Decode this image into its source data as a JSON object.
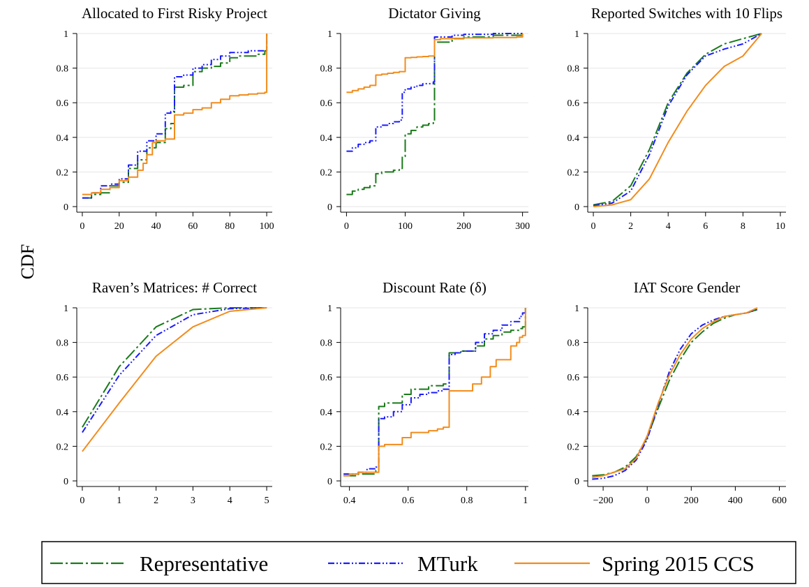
{
  "ylabel": "CDF",
  "colors": {
    "representative": "#1a7a1a",
    "mturk": "#1a1aff",
    "ccs": "#f28c1c",
    "grid": "#e6e6e6"
  },
  "legend": {
    "items": [
      {
        "key": "representative",
        "label": "Representative"
      },
      {
        "key": "mturk",
        "label": "MTurk"
      },
      {
        "key": "ccs",
        "label": "Spring 2015 CCS"
      }
    ]
  },
  "chart_data": [
    {
      "type": "line",
      "title": "Allocated to First Risky Project",
      "xlim": [
        -3,
        103
      ],
      "xticks": [
        0,
        20,
        40,
        60,
        80,
        100
      ],
      "ylim": [
        0,
        1
      ],
      "yticks": [
        0,
        0.2,
        0.4,
        0.6,
        0.8,
        1
      ],
      "step": true,
      "series": [
        {
          "key": "representative",
          "x": [
            0,
            5,
            10,
            15,
            20,
            25,
            30,
            35,
            40,
            45,
            48,
            50,
            55,
            60,
            65,
            70,
            75,
            80,
            85,
            90,
            95,
            99,
            100
          ],
          "y": [
            0.05,
            0.07,
            0.08,
            0.12,
            0.14,
            0.22,
            0.27,
            0.34,
            0.37,
            0.45,
            0.48,
            0.69,
            0.7,
            0.78,
            0.8,
            0.81,
            0.83,
            0.86,
            0.87,
            0.87,
            0.88,
            0.9,
            1.0
          ]
        },
        {
          "key": "mturk",
          "x": [
            0,
            5,
            10,
            15,
            20,
            25,
            30,
            35,
            40,
            45,
            48,
            50,
            55,
            60,
            65,
            70,
            75,
            80,
            85,
            90,
            95,
            99,
            100
          ],
          "y": [
            0.05,
            0.08,
            0.12,
            0.13,
            0.16,
            0.24,
            0.32,
            0.38,
            0.42,
            0.54,
            0.55,
            0.75,
            0.76,
            0.8,
            0.82,
            0.85,
            0.87,
            0.89,
            0.89,
            0.9,
            0.9,
            0.9,
            1.0
          ]
        },
        {
          "key": "ccs",
          "x": [
            0,
            5,
            10,
            15,
            20,
            25,
            30,
            33,
            35,
            38,
            40,
            45,
            50,
            55,
            60,
            65,
            70,
            75,
            80,
            85,
            90,
            95,
            99,
            100
          ],
          "y": [
            0.07,
            0.08,
            0.1,
            0.11,
            0.15,
            0.17,
            0.21,
            0.25,
            0.3,
            0.37,
            0.38,
            0.39,
            0.53,
            0.54,
            0.56,
            0.57,
            0.6,
            0.62,
            0.64,
            0.645,
            0.65,
            0.655,
            0.66,
            1.0
          ]
        }
      ]
    },
    {
      "type": "line",
      "title": "Dictator Giving",
      "xlim": [
        -10,
        310
      ],
      "xticks": [
        0,
        100,
        200,
        300
      ],
      "ylim": [
        0,
        1
      ],
      "yticks": [
        0,
        0.2,
        0.4,
        0.6,
        0.8,
        1
      ],
      "step": true,
      "series": [
        {
          "key": "representative",
          "x": [
            0,
            10,
            20,
            30,
            40,
            50,
            60,
            70,
            80,
            90,
            95,
            100,
            110,
            120,
            130,
            140,
            148,
            150,
            160,
            180,
            200,
            250,
            280,
            300
          ],
          "y": [
            0.07,
            0.09,
            0.1,
            0.11,
            0.12,
            0.19,
            0.2,
            0.2,
            0.21,
            0.22,
            0.29,
            0.42,
            0.44,
            0.46,
            0.47,
            0.48,
            0.49,
            0.95,
            0.95,
            0.97,
            0.98,
            0.99,
            0.99,
            1.0
          ]
        },
        {
          "key": "mturk",
          "x": [
            0,
            10,
            20,
            30,
            40,
            50,
            60,
            70,
            80,
            90,
            95,
            100,
            110,
            120,
            130,
            140,
            148,
            150,
            160,
            180,
            200,
            250,
            280,
            300
          ],
          "y": [
            0.32,
            0.34,
            0.36,
            0.37,
            0.38,
            0.46,
            0.47,
            0.48,
            0.49,
            0.5,
            0.66,
            0.68,
            0.69,
            0.7,
            0.71,
            0.71,
            0.72,
            0.98,
            0.98,
            0.99,
            0.995,
            1.0,
            1.0,
            1.0
          ]
        },
        {
          "key": "ccs",
          "x": [
            0,
            10,
            20,
            30,
            40,
            50,
            60,
            70,
            80,
            90,
            100,
            110,
            120,
            130,
            140,
            150,
            160,
            180,
            200,
            250,
            290,
            300
          ],
          "y": [
            0.66,
            0.67,
            0.68,
            0.69,
            0.7,
            0.76,
            0.765,
            0.77,
            0.775,
            0.78,
            0.86,
            0.862,
            0.865,
            0.867,
            0.87,
            0.965,
            0.97,
            0.972,
            0.975,
            0.977,
            0.98,
            1.0
          ]
        }
      ]
    },
    {
      "type": "line",
      "title": "Reported Switches with 10 Flips",
      "xlim": [
        -0.3,
        10.3
      ],
      "xticks": [
        0,
        2,
        4,
        6,
        8,
        10
      ],
      "ylim": [
        0,
        1
      ],
      "yticks": [
        0,
        0.2,
        0.4,
        0.6,
        0.8,
        1
      ],
      "step": false,
      "series": [
        {
          "key": "representative",
          "x": [
            0,
            1,
            2,
            3,
            4,
            5,
            6,
            7,
            8,
            9
          ],
          "y": [
            0.01,
            0.03,
            0.12,
            0.33,
            0.6,
            0.77,
            0.88,
            0.94,
            0.97,
            1.0
          ]
        },
        {
          "key": "mturk",
          "x": [
            0,
            1,
            2,
            3,
            4,
            5,
            6,
            7,
            8,
            9
          ],
          "y": [
            0.005,
            0.02,
            0.09,
            0.3,
            0.58,
            0.76,
            0.87,
            0.91,
            0.94,
            1.0
          ]
        },
        {
          "key": "ccs",
          "x": [
            0,
            1,
            2,
            3,
            4,
            5,
            6,
            7,
            8,
            9
          ],
          "y": [
            0.0,
            0.01,
            0.04,
            0.16,
            0.37,
            0.55,
            0.7,
            0.81,
            0.87,
            1.0
          ]
        }
      ]
    },
    {
      "type": "line",
      "title": "Raven’s Matrices: # Correct",
      "xlim": [
        -0.15,
        5.15
      ],
      "xticks": [
        0,
        1,
        2,
        3,
        4,
        5
      ],
      "ylim": [
        0,
        1
      ],
      "yticks": [
        0,
        0.2,
        0.4,
        0.6,
        0.8,
        1
      ],
      "step": false,
      "series": [
        {
          "key": "representative",
          "x": [
            0,
            1,
            2,
            3,
            4,
            5
          ],
          "y": [
            0.31,
            0.66,
            0.89,
            0.99,
            1.0,
            1.0
          ]
        },
        {
          "key": "mturk",
          "x": [
            0,
            1,
            2,
            3,
            4,
            5
          ],
          "y": [
            0.28,
            0.61,
            0.84,
            0.96,
            0.995,
            1.0
          ]
        },
        {
          "key": "ccs",
          "x": [
            0,
            1,
            2,
            3,
            4,
            5
          ],
          "y": [
            0.17,
            0.45,
            0.72,
            0.89,
            0.98,
            1.0
          ]
        }
      ]
    },
    {
      "type": "line",
      "title": "Discount Rate (δ)",
      "xlim": [
        0.37,
        1.01
      ],
      "xticks": [
        0.4,
        0.6,
        0.8,
        1
      ],
      "ylim": [
        0,
        1
      ],
      "yticks": [
        0,
        0.2,
        0.4,
        0.6,
        0.8,
        1
      ],
      "step": true,
      "series": [
        {
          "key": "representative",
          "x": [
            0.38,
            0.4,
            0.43,
            0.46,
            0.49,
            0.5,
            0.52,
            0.55,
            0.58,
            0.61,
            0.64,
            0.67,
            0.7,
            0.72,
            0.74,
            0.76,
            0.78,
            0.8,
            0.83,
            0.86,
            0.89,
            0.92,
            0.95,
            0.98,
            0.99,
            1.0
          ],
          "y": [
            0.03,
            0.03,
            0.04,
            0.04,
            0.06,
            0.43,
            0.45,
            0.45,
            0.5,
            0.53,
            0.53,
            0.55,
            0.55,
            0.56,
            0.74,
            0.74,
            0.75,
            0.75,
            0.78,
            0.82,
            0.84,
            0.86,
            0.87,
            0.88,
            0.89,
            1.0
          ]
        },
        {
          "key": "mturk",
          "x": [
            0.38,
            0.4,
            0.43,
            0.46,
            0.49,
            0.5,
            0.52,
            0.55,
            0.58,
            0.61,
            0.64,
            0.67,
            0.7,
            0.72,
            0.74,
            0.76,
            0.78,
            0.8,
            0.83,
            0.86,
            0.89,
            0.92,
            0.95,
            0.98,
            0.99,
            1.0
          ],
          "y": [
            0.04,
            0.04,
            0.05,
            0.07,
            0.08,
            0.36,
            0.37,
            0.4,
            0.44,
            0.48,
            0.5,
            0.51,
            0.52,
            0.53,
            0.73,
            0.74,
            0.75,
            0.75,
            0.8,
            0.85,
            0.87,
            0.9,
            0.92,
            0.95,
            0.97,
            1.0
          ]
        },
        {
          "key": "ccs",
          "x": [
            0.38,
            0.4,
            0.43,
            0.46,
            0.49,
            0.5,
            0.52,
            0.55,
            0.58,
            0.61,
            0.64,
            0.67,
            0.7,
            0.72,
            0.74,
            0.78,
            0.82,
            0.85,
            0.88,
            0.9,
            0.93,
            0.95,
            0.97,
            0.98,
            0.99,
            1.0
          ],
          "y": [
            0.03,
            0.04,
            0.05,
            0.05,
            0.05,
            0.2,
            0.21,
            0.21,
            0.25,
            0.28,
            0.28,
            0.29,
            0.3,
            0.31,
            0.52,
            0.52,
            0.56,
            0.6,
            0.66,
            0.7,
            0.7,
            0.78,
            0.8,
            0.83,
            0.84,
            1.0
          ]
        }
      ]
    },
    {
      "type": "line",
      "title": "IAT Score Gender",
      "xlim": [
        -270,
        630
      ],
      "xticks": [
        -200,
        0,
        200,
        400,
        600
      ],
      "ylim": [
        0,
        1
      ],
      "yticks": [
        0,
        0.2,
        0.4,
        0.6,
        0.8,
        1
      ],
      "step": false,
      "series": [
        {
          "key": "representative",
          "x": [
            -250,
            -200,
            -150,
            -100,
            -50,
            0,
            50,
            100,
            150,
            200,
            250,
            300,
            350,
            400,
            450,
            500
          ],
          "y": [
            0.03,
            0.035,
            0.05,
            0.08,
            0.14,
            0.25,
            0.42,
            0.58,
            0.7,
            0.8,
            0.86,
            0.91,
            0.94,
            0.96,
            0.97,
            0.99
          ]
        },
        {
          "key": "mturk",
          "x": [
            -250,
            -200,
            -150,
            -100,
            -50,
            0,
            50,
            100,
            150,
            200,
            250,
            300,
            350,
            400,
            450,
            500
          ],
          "y": [
            0.01,
            0.015,
            0.03,
            0.06,
            0.12,
            0.24,
            0.44,
            0.63,
            0.76,
            0.85,
            0.9,
            0.93,
            0.95,
            0.96,
            0.97,
            0.99
          ]
        },
        {
          "key": "ccs",
          "x": [
            -250,
            -200,
            -150,
            -100,
            -50,
            0,
            50,
            100,
            150,
            200,
            250,
            300,
            350,
            400,
            450,
            500
          ],
          "y": [
            0.02,
            0.03,
            0.05,
            0.07,
            0.13,
            0.26,
            0.45,
            0.61,
            0.73,
            0.82,
            0.88,
            0.92,
            0.95,
            0.96,
            0.97,
            1.0
          ]
        }
      ]
    }
  ]
}
